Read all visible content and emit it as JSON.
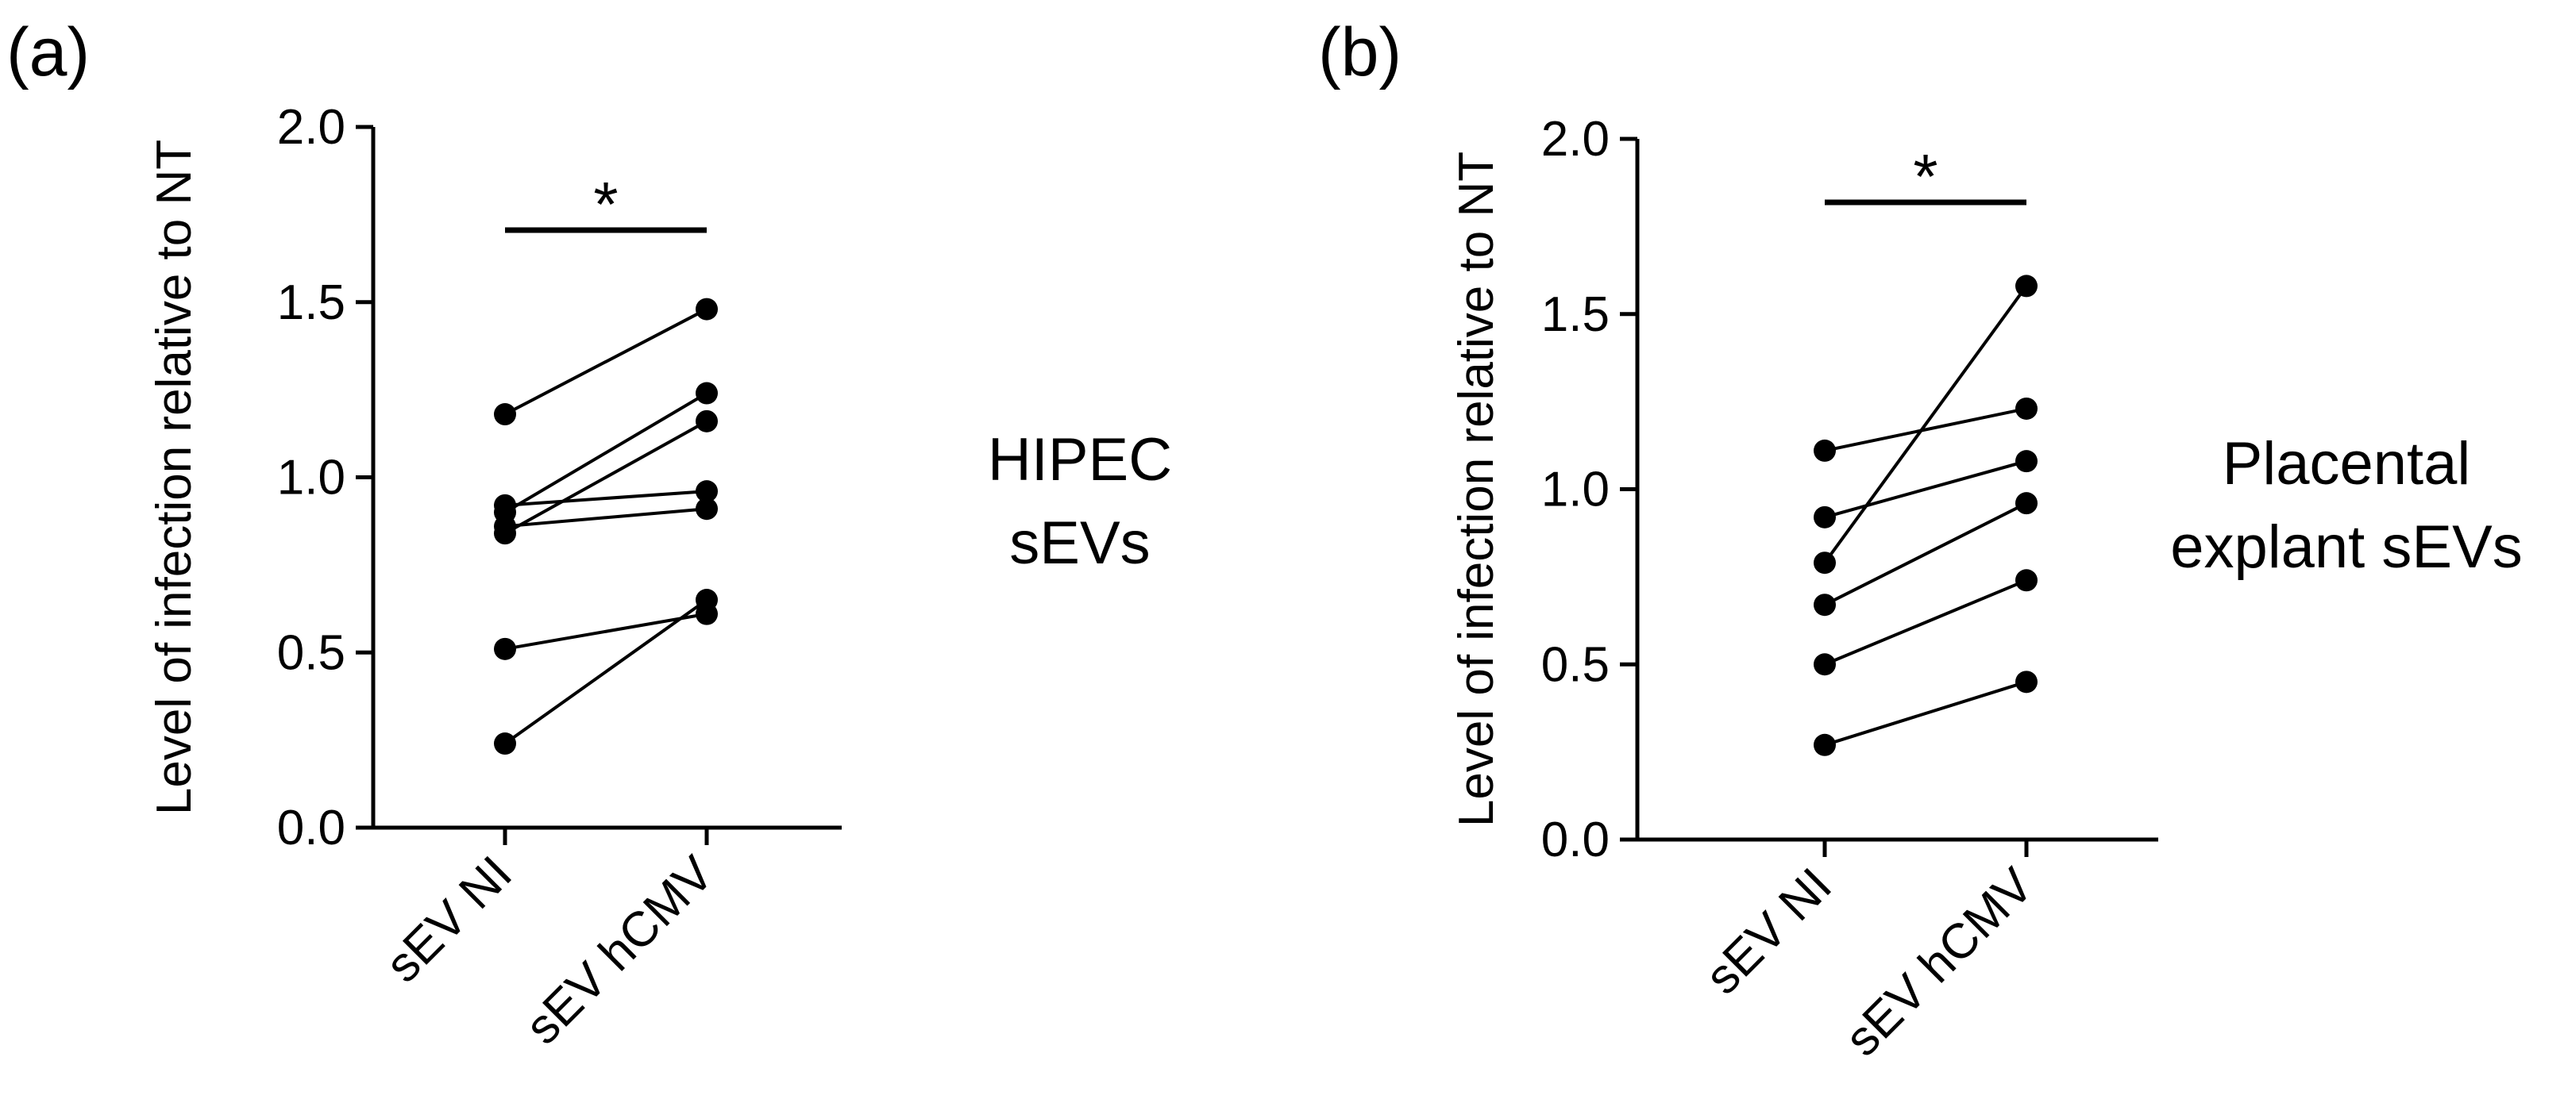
{
  "chart_data": [
    {
      "type": "paired-dot",
      "panel_label": "(a)",
      "title": "",
      "side_label": [
        "HIPEC",
        "sEVs"
      ],
      "ylabel": "Level of infection relative to NT",
      "xlabel": "",
      "categories": [
        "sEV NI",
        "sEV hCMV"
      ],
      "ylim": [
        0,
        2
      ],
      "yticks": [
        "0.0",
        "0.5",
        "1.0",
        "1.5",
        "2.0"
      ],
      "significance": "*",
      "pairs": [
        [
          1.18,
          1.48
        ],
        [
          0.92,
          0.96
        ],
        [
          0.9,
          1.24
        ],
        [
          0.86,
          0.91
        ],
        [
          0.84,
          1.16
        ],
        [
          0.51,
          0.61
        ],
        [
          0.24,
          0.65
        ]
      ]
    },
    {
      "type": "paired-dot",
      "panel_label": "(b)",
      "title": "",
      "side_label": [
        "Placental",
        "explant sEVs"
      ],
      "ylabel": "Level of infection relative to NT",
      "xlabel": "",
      "categories": [
        "sEV NI",
        "sEV hCMV"
      ],
      "ylim": [
        0,
        2
      ],
      "yticks": [
        "0.0",
        "0.5",
        "1.0",
        "1.5",
        "2.0"
      ],
      "significance": "*",
      "pairs": [
        [
          1.11,
          1.23
        ],
        [
          0.92,
          1.08
        ],
        [
          0.79,
          1.58
        ],
        [
          0.67,
          0.96
        ],
        [
          0.5,
          0.74
        ],
        [
          0.27,
          0.45
        ]
      ]
    }
  ]
}
